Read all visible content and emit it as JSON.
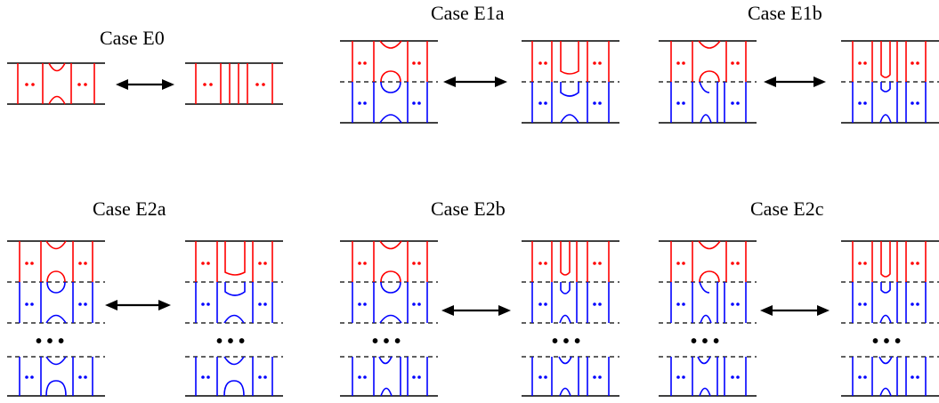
{
  "colors": {
    "upper": "#ff0000",
    "lower": "#0000ff",
    "ink": "#000000"
  },
  "cases": [
    {
      "title": "Case E0",
      "kind": "single"
    },
    {
      "title": "Case E1a",
      "kind": "two-layer",
      "variant": "a"
    },
    {
      "title": "Case E1b",
      "kind": "two-layer",
      "variant": "b"
    },
    {
      "title": "Case E2a",
      "kind": "multi-layer",
      "variant": "a",
      "ellipsis": "• • •"
    },
    {
      "title": "Case E2b",
      "kind": "multi-layer",
      "variant": "b",
      "ellipsis": "• • •"
    },
    {
      "title": "Case E2c",
      "kind": "multi-layer",
      "variant": "c",
      "ellipsis": "• • •"
    }
  ]
}
